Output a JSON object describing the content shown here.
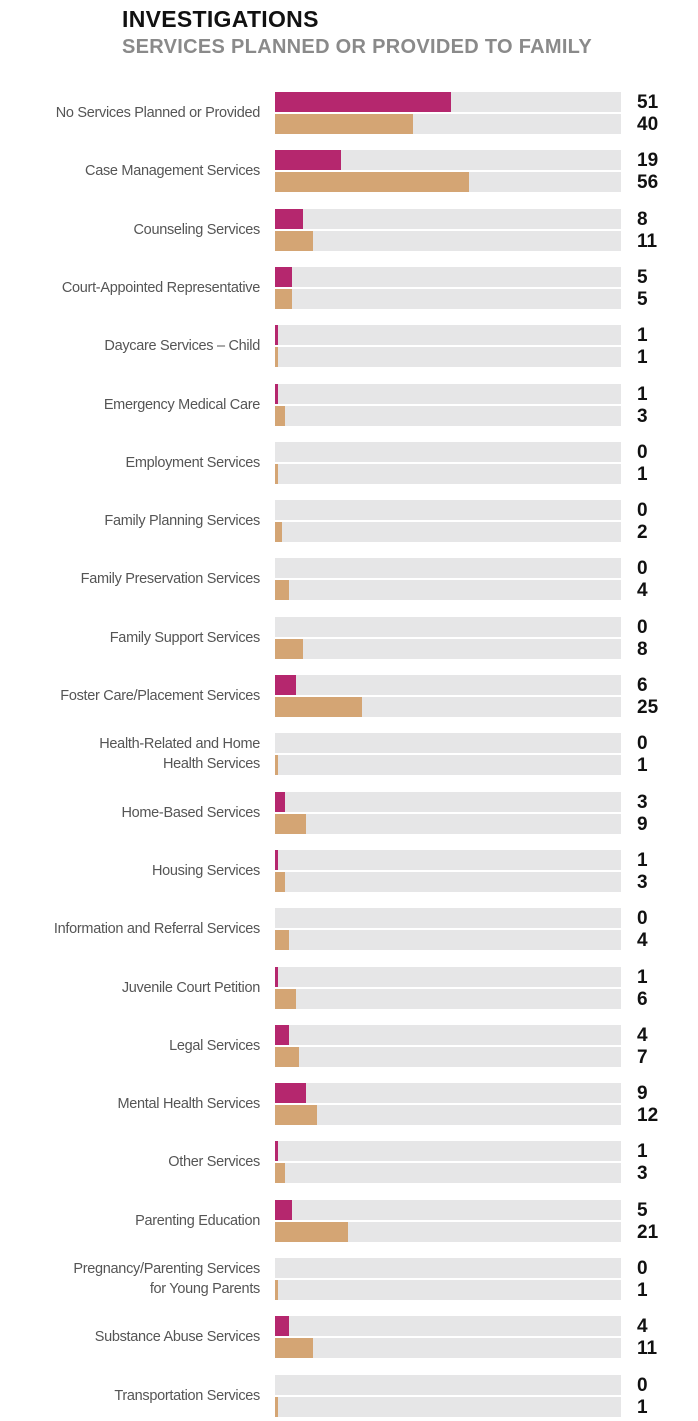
{
  "chart_data": {
    "type": "bar",
    "orientation": "horizontal",
    "title": "INVESTIGATIONS",
    "subtitle": "SERVICES PLANNED OR PROVIDED TO FAMILY",
    "categories": [
      "No Services Planned or Provided",
      "Case Management Services",
      "Counseling Services",
      "Court-Appointed Representative",
      "Daycare Services – Child",
      "Emergency Medical Care",
      "Employment Services",
      "Family Planning Services",
      "Family Preservation Services",
      "Family Support Services",
      "Foster Care/Placement Services",
      "Health-Related and Home\nHealth Services",
      "Home-Based Services",
      "Housing Services",
      "Information and Referral Services",
      "Juvenile Court Petition",
      "Legal Services",
      "Mental Health Services",
      "Other Services",
      "Parenting Education",
      "Pregnancy/Parenting Services\nfor Young Parents",
      "Substance Abuse Services",
      "Transportation Services"
    ],
    "series": [
      {
        "color": "#b5276e",
        "values": [
          51,
          19,
          8,
          5,
          1,
          1,
          0,
          0,
          0,
          0,
          6,
          0,
          3,
          1,
          0,
          1,
          4,
          9,
          1,
          5,
          0,
          4,
          0
        ]
      },
      {
        "color": "#d4a574",
        "values": [
          40,
          56,
          11,
          5,
          1,
          3,
          1,
          2,
          4,
          8,
          25,
          1,
          9,
          3,
          4,
          6,
          7,
          12,
          3,
          21,
          1,
          11,
          1
        ]
      }
    ],
    "xlim": [
      0,
      100
    ]
  }
}
